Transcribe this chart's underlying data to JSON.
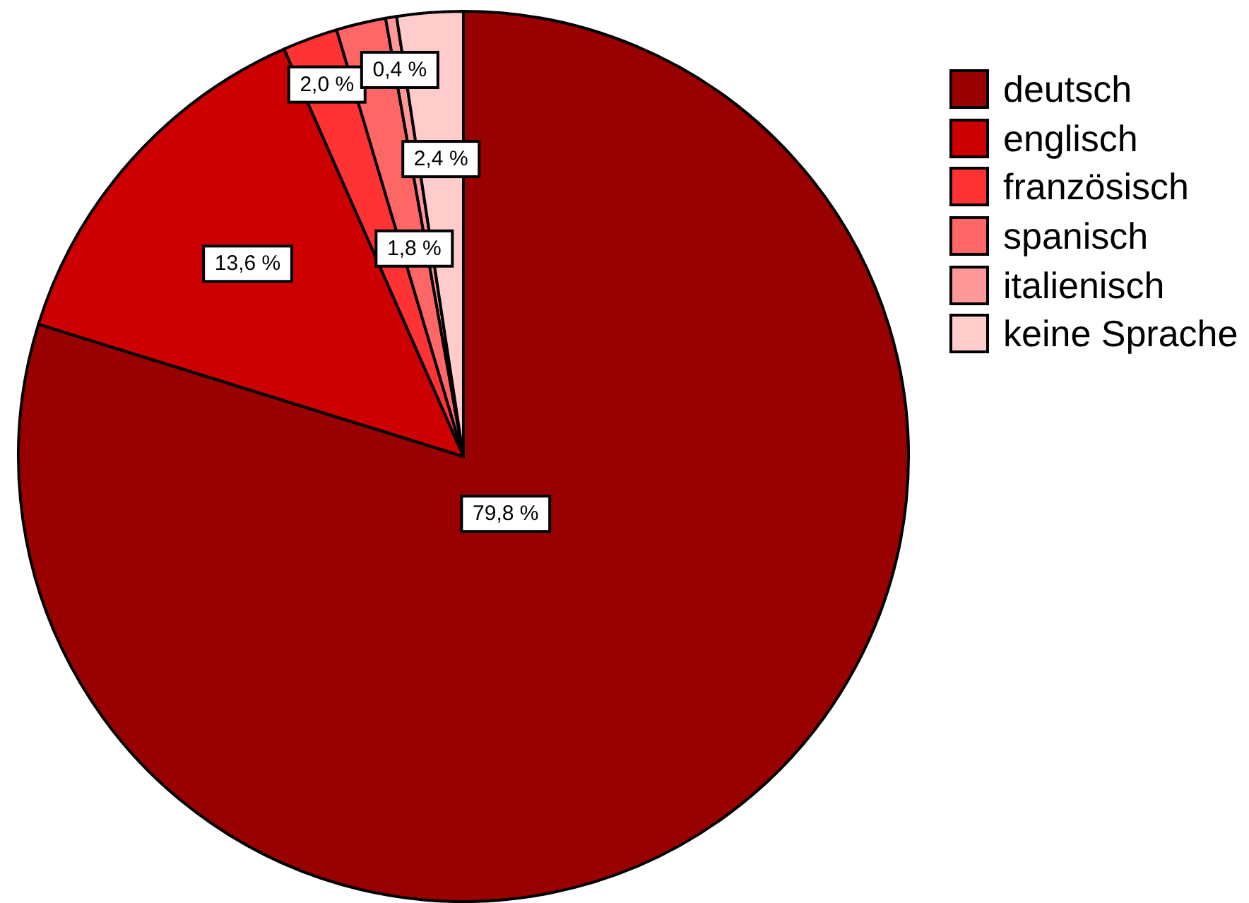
{
  "chart_data": {
    "type": "pie",
    "categories": [
      "deutsch",
      "englisch",
      "französisch",
      "spanisch",
      "italienisch",
      "keine Sprache"
    ],
    "values": [
      79.8,
      13.6,
      2.0,
      1.8,
      0.4,
      2.4
    ],
    "colors": [
      "#990000",
      "#cc0000",
      "#ff3333",
      "#ff6666",
      "#ff9999",
      "#ffcccc"
    ],
    "value_labels": [
      "79,8 %",
      "13,6 %",
      "2,0 %",
      "1,8 %",
      "0,4 %",
      "2,4 %"
    ],
    "legend": "top right"
  }
}
